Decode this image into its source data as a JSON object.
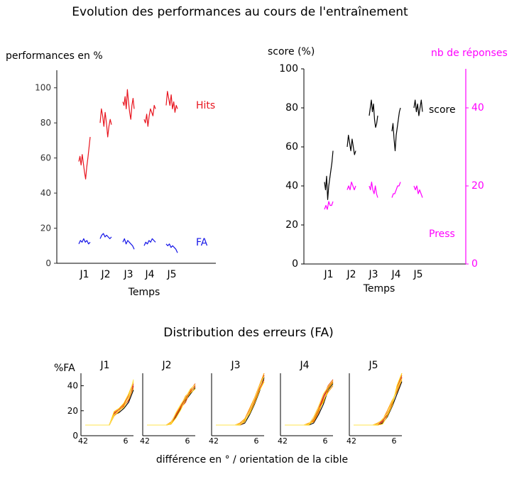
{
  "figure": {
    "title": "Evolution des performances au cours de l'entraînement",
    "subtitle": "Distribution des erreurs (FA)",
    "bottom_xlabel": "différence en ° / orientation de la cible",
    "colors": {
      "hits": "#e8141e",
      "fa": "#1414e8",
      "score": "#000000",
      "press": "#ff00ff",
      "sessions": [
        "#000000",
        "#c81414",
        "#e8501e",
        "#ff9600",
        "#ffc800",
        "#ffe650"
      ]
    }
  },
  "chart_data": [
    {
      "id": "perf",
      "type": "line",
      "ylabel": "performances en %",
      "xlabel": "Temps",
      "ylim": [
        0,
        110
      ],
      "yticks": [
        "0",
        "20",
        "40",
        "60",
        "80",
        "100"
      ],
      "categories": [
        "J1",
        "J2",
        "J3",
        "J4",
        "J5"
      ],
      "series": [
        {
          "name": "Hits",
          "color": "#e8141e",
          "days": [
            [
              58,
              61,
              56,
              62,
              57,
              52,
              48,
              55,
              60,
              66,
              72
            ],
            [
              80,
              88,
              84,
              78,
              86,
              80,
              72,
              78,
              82,
              79
            ],
            [
              92,
              90,
              95,
              88,
              99,
              92,
              86,
              82,
              90,
              94,
              88
            ],
            [
              82,
              80,
              85,
              78,
              84,
              88,
              86,
              84,
              90,
              88
            ],
            [
              90,
              98,
              94,
              90,
              96,
              88,
              92,
              86,
              90,
              88
            ]
          ]
        },
        {
          "name": "FA",
          "color": "#1414e8",
          "days": [
            [
              11,
              13,
              12,
              14,
              12,
              13,
              11,
              12
            ],
            [
              14,
              16,
              17,
              15,
              16,
              15,
              14,
              15
            ],
            [
              12,
              14,
              11,
              13,
              12,
              11,
              10,
              8
            ],
            [
              10,
              12,
              11,
              13,
              12,
              14,
              13,
              12
            ],
            [
              11,
              10,
              11,
              9,
              10,
              9,
              8,
              6
            ]
          ]
        }
      ]
    },
    {
      "id": "score",
      "type": "line",
      "ylabel": "score (%)",
      "ylabel_right": "nb de réponses",
      "xlabel": "Temps",
      "ylim": [
        0,
        100
      ],
      "yticks": [
        "0",
        "20",
        "40",
        "60",
        "80",
        "100"
      ],
      "ylim_right": [
        0,
        50
      ],
      "yticks_right": [
        "0",
        "20",
        "40"
      ],
      "categories": [
        "J1",
        "J2",
        "J3",
        "J4",
        "J5"
      ],
      "series": [
        {
          "name": "score",
          "axis": "left",
          "color": "#000000",
          "days": [
            [
              42,
              38,
              45,
              33,
              40,
              44,
              48,
              52,
              58
            ],
            [
              60,
              66,
              62,
              58,
              64,
              60,
              56,
              58
            ],
            [
              76,
              80,
              84,
              78,
              82,
              74,
              70,
              72,
              76
            ],
            [
              68,
              72,
              64,
              58,
              66,
              70,
              74,
              78,
              80
            ],
            [
              80,
              84,
              78,
              82,
              76,
              80,
              84,
              78
            ]
          ]
        },
        {
          "name": "Press",
          "axis": "right",
          "color": "#ff00ff",
          "days": [
            [
              14,
              15,
              14,
              16,
              15,
              15,
              16
            ],
            [
              19,
              20,
              19,
              21,
              20,
              19,
              20
            ],
            [
              20,
              19,
              21,
              19,
              18,
              20,
              18,
              17
            ],
            [
              17,
              18,
              18,
              19,
              20,
              20,
              21
            ],
            [
              20,
              19,
              20,
              18,
              19,
              18,
              17
            ]
          ]
        }
      ]
    },
    {
      "id": "fa-distribution",
      "type": "line",
      "ylabel": "%FA",
      "ylim": [
        0,
        50
      ],
      "yticks": [
        "0",
        "20",
        "40"
      ],
      "xticks": [
        "42",
        "6"
      ],
      "panels": [
        {
          "label": "J1",
          "lines": [
            [
              0,
              0,
              0,
              0,
              0,
              0,
              10,
              12,
              16,
              22,
              34
            ],
            [
              0,
              0,
              0,
              0,
              0,
              0,
              11,
              14,
              18,
              24,
              38
            ],
            [
              0,
              0,
              0,
              0,
              0,
              0,
              12,
              15,
              20,
              28,
              40
            ],
            [
              0,
              0,
              0,
              0,
              0,
              0,
              9,
              13,
              19,
              25,
              36
            ],
            [
              0,
              0,
              0,
              0,
              0,
              0,
              13,
              16,
              21,
              30,
              42
            ],
            [
              0,
              0,
              0,
              0,
              0,
              0,
              10,
              14,
              17,
              26,
              44
            ]
          ]
        },
        {
          "label": "J2",
          "lines": [
            [
              0,
              0,
              0,
              0,
              0,
              2,
              8,
              16,
              24,
              30,
              36
            ],
            [
              0,
              0,
              0,
              0,
              0,
              1,
              10,
              18,
              26,
              32,
              38
            ],
            [
              0,
              0,
              0,
              0,
              0,
              2,
              9,
              17,
              22,
              34,
              40
            ],
            [
              0,
              0,
              0,
              0,
              0,
              3,
              11,
              19,
              28,
              33,
              37
            ],
            [
              0,
              0,
              0,
              0,
              0,
              1,
              7,
              15,
              25,
              31,
              35
            ],
            [
              0,
              0,
              0,
              0,
              0,
              2,
              12,
              20,
              27,
              35,
              39
            ]
          ]
        },
        {
          "label": "J3",
          "lines": [
            [
              0,
              0,
              0,
              0,
              0,
              0,
              2,
              10,
              20,
              32,
              46
            ],
            [
              0,
              0,
              0,
              0,
              0,
              1,
              4,
              12,
              22,
              36,
              48
            ],
            [
              0,
              0,
              0,
              0,
              0,
              0,
              3,
              14,
              24,
              34,
              44
            ],
            [
              0,
              0,
              0,
              0,
              0,
              2,
              6,
              16,
              26,
              38,
              50
            ],
            [
              0,
              0,
              0,
              0,
              0,
              0,
              5,
              11,
              21,
              33,
              42
            ],
            [
              0,
              0,
              0,
              0,
              0,
              1,
              3,
              13,
              25,
              37,
              47
            ]
          ]
        },
        {
          "label": "J4",
          "lines": [
            [
              0,
              0,
              0,
              0,
              0,
              0,
              2,
              10,
              20,
              34,
              40
            ],
            [
              0,
              0,
              0,
              0,
              0,
              1,
              4,
              14,
              26,
              36,
              42
            ],
            [
              0,
              0,
              0,
              0,
              0,
              0,
              6,
              16,
              28,
              38,
              44
            ],
            [
              0,
              0,
              0,
              0,
              0,
              2,
              3,
              12,
              24,
              32,
              38
            ],
            [
              0,
              0,
              0,
              0,
              0,
              0,
              5,
              15,
              22,
              35,
              41
            ],
            [
              0,
              0,
              0,
              0,
              0,
              1,
              8,
              18,
              30,
              37,
              43
            ]
          ]
        },
        {
          "label": "J5",
          "lines": [
            [
              0,
              0,
              0,
              0,
              0,
              0,
              2,
              8,
              18,
              30,
              42
            ],
            [
              0,
              0,
              0,
              0,
              0,
              1,
              4,
              10,
              22,
              34,
              46
            ],
            [
              0,
              0,
              0,
              0,
              0,
              0,
              3,
              12,
              20,
              36,
              48
            ],
            [
              0,
              0,
              0,
              0,
              0,
              2,
              5,
              14,
              24,
              32,
              44
            ],
            [
              0,
              0,
              0,
              0,
              0,
              0,
              1,
              9,
              19,
              38,
              50
            ],
            [
              0,
              0,
              0,
              0,
              0,
              1,
              6,
              11,
              23,
              35,
              45
            ]
          ]
        }
      ]
    }
  ]
}
